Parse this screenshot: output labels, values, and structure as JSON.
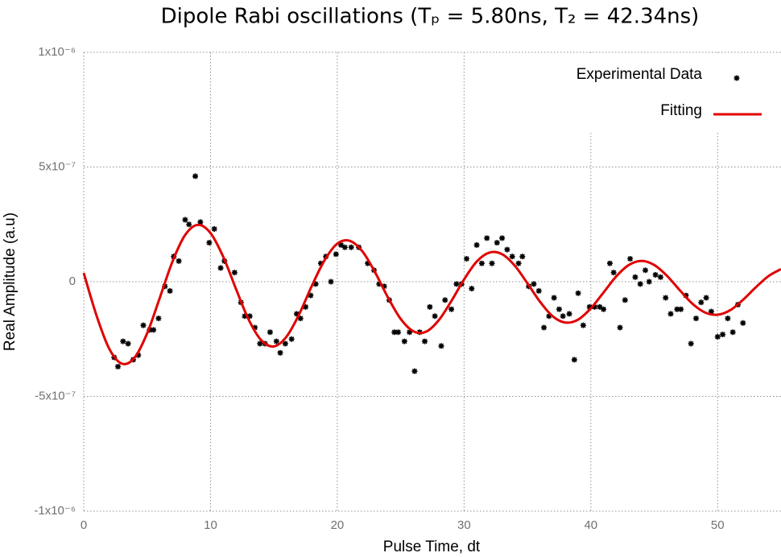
{
  "chart_data": {
    "type": "scatter",
    "title": "Dipole Rabi oscillations (Tₚ = 5.80ns, T₂ = 42.34ns)",
    "x_label": "Pulse Time, dt",
    "y_label": "Real Amplitude (a.u)",
    "xlim": [
      0,
      55
    ],
    "xticks": [
      0,
      10,
      20,
      30,
      40,
      50
    ],
    "ylim": [
      -1e-06,
      1e-06
    ],
    "yticks": [
      {
        "value": -1e-06,
        "label": "-1x10⁻⁶"
      },
      {
        "value": -5e-07,
        "label": "-5x10⁻⁷"
      },
      0,
      {
        "value": 5e-07,
        "label": "5x10⁻⁷"
      },
      {
        "value": 1e-06,
        "label": "1x10⁻⁶"
      }
    ],
    "grid": true,
    "legend": "top-right",
    "series": [
      {
        "name": "Experimental Data",
        "type": "scatter",
        "color": "#000000",
        "x": [
          2.4,
          2.7,
          3.1,
          3.5,
          3.9,
          4.3,
          4.7,
          5.2,
          5.5,
          5.9,
          6.4,
          6.8,
          7.1,
          7.5,
          8.0,
          8.3,
          8.8,
          9.2,
          9.9,
          10.3,
          10.8,
          11.1,
          11.9,
          12.4,
          12.7,
          13.1,
          13.5,
          13.9,
          14.3,
          14.7,
          15.2,
          15.5,
          15.9,
          16.4,
          16.8,
          17.1,
          17.5,
          17.9,
          18.3,
          18.7,
          19.1,
          19.5,
          19.9,
          20.3,
          20.6,
          21.1,
          21.7,
          22.4,
          22.9,
          23.3,
          23.7,
          24.1,
          24.5,
          24.8,
          25.3,
          25.7,
          26.1,
          26.5,
          26.9,
          27.3,
          27.7,
          28.2,
          28.5,
          29.0,
          29.4,
          29.8,
          30.2,
          30.6,
          31.0,
          31.4,
          31.8,
          32.2,
          32.6,
          33.0,
          33.4,
          33.8,
          34.3,
          34.6,
          35.1,
          35.5,
          35.9,
          36.3,
          36.7,
          37.1,
          37.5,
          37.8,
          38.3,
          38.7,
          39.0,
          39.4,
          39.9,
          40.3,
          40.7,
          41.0,
          41.5,
          41.8,
          42.3,
          42.7,
          43.1,
          43.5,
          43.9,
          44.3,
          44.6,
          45.1,
          45.5,
          45.9,
          46.3,
          46.8,
          47.1,
          47.5,
          47.9,
          48.3,
          48.7,
          49.1,
          49.5,
          50.0,
          50.4,
          50.8,
          51.2,
          51.6,
          52.0
        ],
        "values": [
          -3.3e-07,
          -3.7e-07,
          -2.6e-07,
          -2.7e-07,
          -3.4e-07,
          -3.2e-07,
          -1.9e-07,
          -2.1e-07,
          -2.1e-07,
          -1.6e-07,
          -2e-08,
          -4e-08,
          1.1e-07,
          9e-08,
          2.7e-07,
          2.5e-07,
          4.6e-07,
          2.6e-07,
          1.7e-07,
          2.3e-07,
          6e-08,
          9e-08,
          4e-08,
          -9e-08,
          -1.5e-07,
          -1.5e-07,
          -2e-07,
          -2.7e-07,
          -2.7e-07,
          -2.2e-07,
          -2.6e-07,
          -3.1e-07,
          -2.7e-07,
          -2.5e-07,
          -1.4e-07,
          -1.6e-07,
          -1.1e-07,
          -6e-08,
          -1e-08,
          8e-08,
          1.1e-07,
          0,
          1.2e-07,
          1.6e-07,
          1.5e-07,
          1.5e-07,
          1.5e-07,
          8e-08,
          5e-08,
          -1e-08,
          -2e-08,
          -8e-08,
          -2.2e-07,
          -2.2e-07,
          -2.6e-07,
          -2.2e-07,
          -3.9e-07,
          -2.2e-07,
          -2.6e-07,
          -1.1e-07,
          -1.5e-07,
          -2.8e-07,
          -8e-08,
          -1.2e-07,
          -1e-08,
          -1e-08,
          1e-07,
          -3e-08,
          1.6e-07,
          8e-08,
          1.9e-07,
          8e-08,
          1.7e-07,
          1.9e-07,
          1.4e-07,
          1.1e-07,
          8e-08,
          1.1e-07,
          -2e-08,
          -1e-08,
          -4e-08,
          -2e-07,
          -1.5e-07,
          -7e-08,
          -1.2e-07,
          -1.5e-07,
          -1.4e-07,
          -3.4e-07,
          -5e-08,
          -1.9e-07,
          -1.1e-07,
          -1.1e-07,
          -1.1e-07,
          -1.2e-07,
          8e-08,
          4e-08,
          -2e-07,
          -8e-08,
          1e-07,
          2e-08,
          -1e-08,
          5e-08,
          0,
          3e-08,
          2e-08,
          -7e-08,
          -1.4e-07,
          -1.2e-07,
          -1.2e-07,
          -6e-08,
          -2.7e-07,
          -1.6e-07,
          -9e-08,
          -7e-08,
          -1.3e-07,
          -2.4e-07,
          -2.3e-07,
          -1.6e-07,
          -2.2e-07,
          -1e-07,
          -1.8e-07
        ]
      },
      {
        "name": "Fitting",
        "type": "line",
        "color": "#e00000",
        "x": [
          0,
          1,
          2,
          3,
          4,
          5,
          6,
          7,
          8,
          9,
          10,
          11,
          12,
          13,
          14,
          15,
          16,
          17,
          18,
          19,
          20,
          21,
          22,
          23,
          24,
          25,
          26,
          27,
          28,
          29,
          30,
          31,
          32,
          33,
          34,
          35,
          36,
          37,
          38,
          39,
          40,
          41,
          42,
          43,
          44,
          45,
          46,
          47,
          48,
          49,
          50,
          51,
          52,
          53,
          54,
          55
        ],
        "values": [
          3.8e-08,
          -1.46e-07,
          -2.91e-07,
          -3.57e-07,
          -3.32e-07,
          -2.25e-07,
          -7e-08,
          8.8e-08,
          2.04e-07,
          2.48e-07,
          2.12e-07,
          1.09e-07,
          -3e-08,
          -1.64e-07,
          -2.55e-07,
          -2.82e-07,
          -2.39e-07,
          -1.41e-07,
          -1.7e-08,
          9.4e-08,
          1.66e-07,
          1.78e-07,
          1.31e-07,
          3.9e-08,
          -6.9e-08,
          -1.62e-07,
          -2.16e-07,
          -2.18e-07,
          -1.68e-07,
          -8.4e-08,
          1e-08,
          8.8e-08,
          1.27e-07,
          1.2e-07,
          7e-08,
          -7e-09,
          -8.8e-08,
          -1.51e-07,
          -1.78e-07,
          -1.65e-07,
          -1.16e-07,
          -4.7e-08,
          2.3e-08,
          7.3e-08,
          9.1e-08,
          7.3e-08,
          2.6e-08,
          -3.6e-08,
          -9.5e-08,
          -1.34e-07,
          -1.44e-07,
          -1.24e-07,
          -7.9e-08,
          -2.5e-08,
          2.4e-08,
          5.5e-08
        ]
      }
    ]
  }
}
